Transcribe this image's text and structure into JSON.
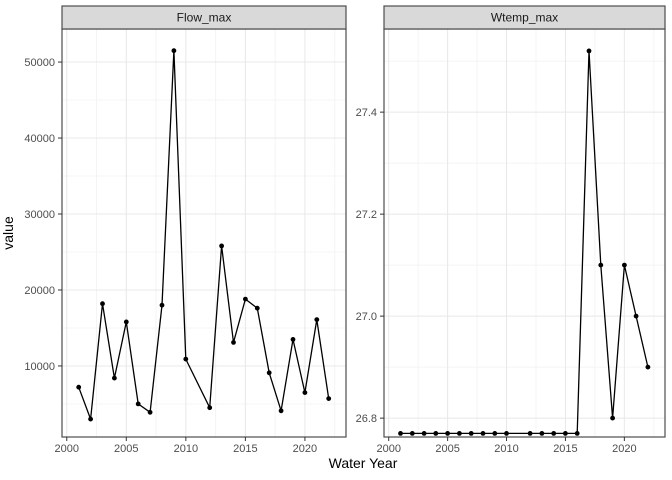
{
  "figure": {
    "xlabel": "Water Year",
    "ylabel": "value",
    "colors": {
      "plot_bg": "#ffffff",
      "panel_bg": "#ffffff",
      "panel_border": "#4d4d4d",
      "strip_fill": "#d9d9d9",
      "strip_border": "#4d4d4d",
      "grid_major": "#e8e8e8",
      "grid_minor": "#f4f4f4",
      "tick_mark": "#333333",
      "axis_text": "#4d4d4d",
      "series": "#000000"
    }
  },
  "chart_data": [
    {
      "type": "line",
      "title": "Flow_max",
      "xlabel": "Water Year",
      "ylabel": "value",
      "grid": true,
      "legend": "none",
      "marker": "point",
      "x": [
        2001,
        2002,
        2003,
        2004,
        2005,
        2006,
        2007,
        2008,
        2009,
        2010,
        2012,
        2013,
        2014,
        2015,
        2016,
        2017,
        2018,
        2019,
        2020,
        2021,
        2022
      ],
      "values": [
        7200,
        3000,
        18200,
        8400,
        15800,
        5000,
        3900,
        18000,
        51500,
        10900,
        4500,
        25800,
        13100,
        18800,
        17600,
        9100,
        4100,
        13500,
        6500,
        16100,
        5700
      ],
      "xlim": [
        1999.6,
        2023.45
      ],
      "ylim": [
        650,
        54350
      ],
      "xticks": [
        2000,
        2005,
        2010,
        2015,
        2020
      ],
      "xtick_labels": [
        "2000",
        "2005",
        "2010",
        "2015",
        "2020"
      ],
      "xminor": [
        2002.5,
        2007.5,
        2012.5,
        2017.5,
        2022.5
      ],
      "yticks": [
        10000,
        20000,
        30000,
        40000,
        50000
      ],
      "ytick_labels": [
        "10000",
        "20000",
        "30000",
        "40000",
        "50000"
      ],
      "yminor": [
        5000,
        15000,
        25000,
        35000,
        45000
      ]
    },
    {
      "type": "line",
      "title": "Wtemp_max",
      "xlabel": "Water Year",
      "ylabel": "value",
      "grid": true,
      "legend": "none",
      "marker": "point",
      "x": [
        2001,
        2002,
        2003,
        2004,
        2005,
        2006,
        2007,
        2008,
        2009,
        2010,
        2012,
        2013,
        2014,
        2015,
        2016,
        2017,
        2018,
        2019,
        2020,
        2021,
        2022
      ],
      "values": [
        26.77,
        26.77,
        26.77,
        26.77,
        26.77,
        26.77,
        26.77,
        26.77,
        26.77,
        26.77,
        26.77,
        26.77,
        26.77,
        26.77,
        26.77,
        27.52,
        27.1,
        26.8,
        27.1,
        27.0,
        26.9
      ],
      "xlim": [
        1999.6,
        2023.45
      ],
      "ylim": [
        26.763,
        27.563
      ],
      "xticks": [
        2000,
        2005,
        2010,
        2015,
        2020
      ],
      "xtick_labels": [
        "2000",
        "2005",
        "2010",
        "2015",
        "2020"
      ],
      "xminor": [
        2002.5,
        2007.5,
        2012.5,
        2017.5,
        2022.5
      ],
      "yticks": [
        26.8,
        27.0,
        27.2,
        27.4
      ],
      "ytick_labels": [
        "26.8",
        "27.0",
        "27.2",
        "27.4"
      ],
      "yminor": [
        26.9,
        27.1,
        27.3,
        27.5
      ]
    }
  ]
}
